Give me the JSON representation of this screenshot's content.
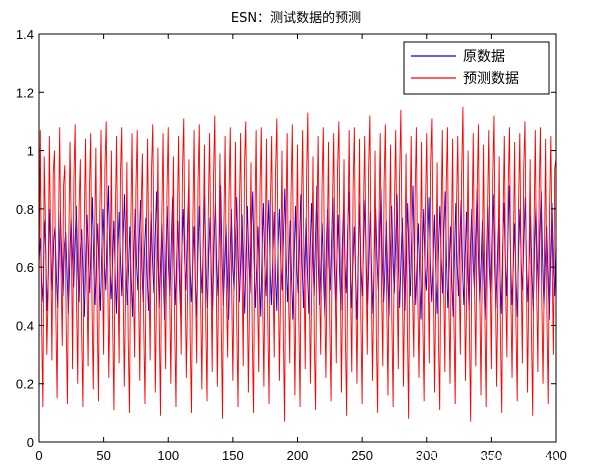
{
  "chart_data": {
    "type": "line",
    "title": "ESN：测试数据的预测",
    "xlabel": "",
    "ylabel": "",
    "xlim": [
      0,
      400
    ],
    "ylim": [
      0,
      1.4
    ],
    "xticks": [
      "0",
      "50",
      "100",
      "150",
      "200",
      "250",
      "300",
      "350",
      "400"
    ],
    "yticks": [
      "0",
      "0.2",
      "0.4",
      "0.6",
      "0.8",
      "1",
      "1.2",
      "1.4"
    ],
    "grid": false,
    "legend_position": "top-right",
    "colors": {
      "原数据": "#0000ff",
      "预测数据": "#ff0000"
    },
    "series": [
      {
        "name": "原数据",
        "values": [
          0.62,
          0.7,
          0.55,
          0.48,
          0.76,
          0.66,
          0.45,
          0.58,
          0.8,
          0.63,
          0.52,
          0.69,
          0.74,
          0.57,
          0.46,
          0.62,
          0.79,
          0.64,
          0.5,
          0.67,
          0.72,
          0.58,
          0.44,
          0.61,
          0.77,
          0.65,
          0.53,
          0.7,
          0.81,
          0.59,
          0.48,
          0.66,
          0.73,
          0.55,
          0.43,
          0.64,
          0.78,
          0.62,
          0.51,
          0.68,
          0.84,
          0.6,
          0.47,
          0.63,
          0.75,
          0.57,
          0.45,
          0.66,
          0.8,
          0.61,
          0.52,
          0.72,
          0.88,
          0.64,
          0.49,
          0.6,
          0.76,
          0.58,
          0.44,
          0.65,
          0.79,
          0.63,
          0.5,
          0.71,
          0.85,
          0.62,
          0.47,
          0.59,
          0.74,
          0.56,
          0.43,
          0.64,
          0.8,
          0.61,
          0.52,
          0.69,
          0.83,
          0.6,
          0.48,
          0.66,
          0.77,
          0.57,
          0.45,
          0.63,
          0.79,
          0.62,
          0.51,
          0.7,
          0.86,
          0.63,
          0.46,
          0.61,
          0.75,
          0.58,
          0.42,
          0.65,
          0.81,
          0.6,
          0.5,
          0.68,
          0.84,
          0.61,
          0.47,
          0.62,
          0.76,
          0.57,
          0.44,
          0.66,
          0.8,
          0.63,
          0.52,
          0.71,
          0.87,
          0.62,
          0.48,
          0.6,
          0.74,
          0.56,
          0.43,
          0.65,
          0.81,
          0.61,
          0.51,
          0.69,
          0.85,
          0.6,
          0.46,
          0.63,
          0.77,
          0.58,
          0.45,
          0.67,
          0.82,
          0.62,
          0.5,
          0.7,
          0.88,
          0.63,
          0.47,
          0.61,
          0.75,
          0.57,
          0.42,
          0.64,
          0.8,
          0.6,
          0.52,
          0.68,
          0.84,
          0.61,
          0.48,
          0.62,
          0.78,
          0.58,
          0.44,
          0.66,
          0.81,
          0.63,
          0.51,
          0.72,
          0.86,
          0.62,
          0.46,
          0.6,
          0.74,
          0.56,
          0.43,
          0.65,
          0.82,
          0.61,
          0.5,
          0.69,
          0.83,
          0.6,
          0.47,
          0.63,
          0.79,
          0.58,
          0.45,
          0.67,
          0.8,
          0.62,
          0.52,
          0.71,
          0.87,
          0.63,
          0.48,
          0.61,
          0.76,
          0.57,
          0.42,
          0.64,
          0.81,
          0.6,
          0.51,
          0.68,
          0.85,
          0.61,
          0.46,
          0.62,
          0.77,
          0.58,
          0.44,
          0.66,
          0.82,
          0.63,
          0.5,
          0.7,
          0.88,
          0.62,
          0.47,
          0.6,
          0.75,
          0.56,
          0.43,
          0.65,
          0.8,
          0.61,
          0.52,
          0.69,
          0.84,
          0.6,
          0.48,
          0.63,
          0.78,
          0.58,
          0.45,
          0.67,
          0.81,
          0.62,
          0.51,
          0.72,
          0.86,
          0.63,
          0.46,
          0.61,
          0.74,
          0.57,
          0.42,
          0.64,
          0.82,
          0.6,
          0.5,
          0.68,
          0.83,
          0.61,
          0.47,
          0.62,
          0.79,
          0.58,
          0.44,
          0.66,
          0.8,
          0.63,
          0.52,
          0.71,
          0.87,
          0.62,
          0.48,
          0.6,
          0.76,
          0.56,
          0.43,
          0.65,
          0.81,
          0.61,
          0.51,
          0.69,
          0.85,
          0.6,
          0.46,
          0.63,
          0.77,
          0.58,
          0.45,
          0.67,
          0.82,
          0.62,
          0.5,
          0.7,
          0.88,
          0.63,
          0.47,
          0.61,
          0.75,
          0.57,
          0.42,
          0.64,
          0.8,
          0.6,
          0.52,
          0.68,
          0.84,
          0.61,
          0.48,
          0.62,
          0.78,
          0.58,
          0.44,
          0.66,
          0.81,
          0.63,
          0.51,
          0.72,
          0.86,
          0.62,
          0.46,
          0.6,
          0.74,
          0.56,
          0.43,
          0.65,
          0.82,
          0.61,
          0.5,
          0.69,
          0.83,
          0.6,
          0.47,
          0.63,
          0.79,
          0.58,
          0.45,
          0.67,
          0.8,
          0.62,
          0.52,
          0.71,
          0.87,
          0.63,
          0.48,
          0.61,
          0.76,
          0.57,
          0.42,
          0.64,
          0.81,
          0.6,
          0.51,
          0.68,
          0.85,
          0.61,
          0.46,
          0.62,
          0.77,
          0.58,
          0.44,
          0.66,
          0.82,
          0.63,
          0.5,
          0.7,
          0.88,
          0.62,
          0.47,
          0.6,
          0.75,
          0.56,
          0.43,
          0.65,
          0.8,
          0.61,
          0.52,
          0.69,
          0.84,
          0.6,
          0.48,
          0.63,
          0.78,
          0.58,
          0.45,
          0.67,
          0.81,
          0.62,
          0.51,
          0.72,
          0.86,
          0.63,
          0.46,
          0.61,
          0.74,
          0.57,
          0.42,
          0.64,
          0.82,
          0.6,
          0.5,
          0.68
        ]
      },
      {
        "name": "预测数据",
        "values": [
          0.55,
          1.07,
          0.4,
          0.12,
          0.98,
          0.75,
          0.3,
          0.5,
          1.05,
          0.68,
          0.28,
          0.92,
          1.0,
          0.45,
          0.15,
          0.7,
          1.08,
          0.6,
          0.33,
          0.88,
          0.95,
          0.42,
          0.13,
          0.66,
          1.03,
          0.72,
          0.25,
          0.9,
          1.09,
          0.5,
          0.2,
          0.8,
          0.97,
          0.38,
          0.12,
          0.74,
          1.04,
          0.58,
          0.26,
          0.86,
          1.06,
          0.48,
          0.18,
          0.69,
          1.01,
          0.44,
          0.14,
          0.78,
          1.07,
          0.62,
          0.3,
          0.94,
          1.1,
          0.65,
          0.22,
          0.55,
          1.0,
          0.4,
          0.11,
          0.76,
          1.05,
          0.6,
          0.27,
          0.91,
          1.08,
          0.57,
          0.19,
          0.52,
          0.96,
          0.36,
          0.1,
          0.73,
          1.06,
          0.55,
          0.29,
          0.87,
          1.07,
          0.51,
          0.21,
          0.79,
          0.99,
          0.41,
          0.13,
          0.68,
          1.04,
          0.61,
          0.28,
          0.92,
          1.09,
          0.64,
          0.17,
          0.54,
          1.01,
          0.43,
          0.09,
          0.77,
          1.06,
          0.52,
          0.25,
          0.85,
          1.08,
          0.56,
          0.2,
          0.6,
          0.98,
          0.39,
          0.12,
          0.75,
          1.05,
          0.63,
          0.3,
          0.93,
          1.11,
          0.59,
          0.22,
          0.53,
          0.97,
          0.35,
          0.1,
          0.74,
          1.07,
          0.54,
          0.27,
          0.88,
          1.09,
          0.5,
          0.18,
          0.66,
          1.02,
          0.42,
          0.14,
          0.8,
          1.06,
          0.6,
          0.24,
          0.9,
          1.12,
          0.62,
          0.19,
          0.56,
          0.99,
          0.4,
          0.08,
          0.72,
          1.05,
          0.51,
          0.29,
          0.84,
          1.08,
          0.55,
          0.21,
          0.61,
          1.03,
          0.41,
          0.12,
          0.78,
          1.06,
          0.63,
          0.26,
          0.95,
          1.1,
          0.58,
          0.17,
          0.52,
          0.96,
          0.36,
          0.1,
          0.75,
          1.07,
          0.53,
          0.24,
          0.87,
          1.08,
          0.5,
          0.19,
          0.67,
          1.04,
          0.42,
          0.13,
          0.81,
          1.05,
          0.6,
          0.29,
          0.92,
          1.11,
          0.64,
          0.21,
          0.55,
          1.0,
          0.39,
          0.07,
          0.73,
          1.06,
          0.52,
          0.27,
          0.85,
          1.09,
          0.54,
          0.16,
          0.6,
          1.02,
          0.43,
          0.12,
          0.79,
          1.07,
          0.62,
          0.25,
          0.9,
          1.13,
          0.59,
          0.2,
          0.53,
          0.98,
          0.35,
          0.11,
          0.76,
          1.05,
          0.55,
          0.3,
          0.88,
          1.08,
          0.51,
          0.22,
          0.66,
          1.03,
          0.41,
          0.14,
          0.8,
          1.06,
          0.6,
          0.27,
          0.94,
          1.1,
          0.63,
          0.17,
          0.56,
          0.97,
          0.38,
          0.09,
          0.72,
          1.07,
          0.52,
          0.24,
          0.86,
          1.08,
          0.55,
          0.2,
          0.61,
          1.04,
          0.43,
          0.13,
          0.78,
          1.05,
          0.62,
          0.3,
          0.93,
          1.12,
          0.58,
          0.21,
          0.52,
          1.0,
          0.36,
          0.1,
          0.75,
          1.06,
          0.53,
          0.26,
          0.89,
          1.09,
          0.5,
          0.16,
          0.67,
          1.02,
          0.42,
          0.12,
          0.81,
          1.07,
          0.6,
          0.25,
          0.91,
          1.14,
          0.64,
          0.19,
          0.55,
          0.99,
          0.4,
          0.08,
          0.73,
          1.05,
          0.51,
          0.29,
          0.84,
          1.08,
          0.54,
          0.22,
          0.6,
          1.03,
          0.41,
          0.14,
          0.79,
          1.06,
          0.63,
          0.27,
          0.95,
          1.11,
          0.59,
          0.17,
          0.53,
          0.96,
          0.35,
          0.11,
          0.74,
          1.07,
          0.55,
          0.24,
          0.87,
          1.08,
          0.5,
          0.2,
          0.66,
          1.04,
          0.42,
          0.13,
          0.8,
          1.05,
          0.6,
          0.3,
          0.92,
          1.15,
          0.62,
          0.21,
          0.56,
          1.0,
          0.39,
          0.07,
          0.72,
          1.06,
          0.52,
          0.26,
          0.85,
          1.09,
          0.55,
          0.16,
          0.61,
          1.02,
          0.43,
          0.12,
          0.78,
          1.07,
          0.61,
          0.25,
          0.9,
          1.12,
          0.58,
          0.19,
          0.52,
          0.98,
          0.36,
          0.1,
          0.76,
          1.05,
          0.53,
          0.29,
          0.88,
          1.08,
          0.51,
          0.22,
          0.67,
          1.03,
          0.41,
          0.14,
          0.81,
          1.06,
          0.6,
          0.27,
          0.93,
          1.1,
          0.63,
          0.17,
          0.55,
          0.97,
          0.38,
          0.09,
          0.73,
          1.07,
          0.54,
          0.24,
          0.86,
          1.08,
          0.5,
          0.2,
          0.6,
          1.04,
          0.43,
          0.13,
          0.79,
          1.05,
          0.62,
          0.3,
          0.94,
          0.97
        ]
      }
    ]
  },
  "watermark": "CSDN @fpga&matlab"
}
